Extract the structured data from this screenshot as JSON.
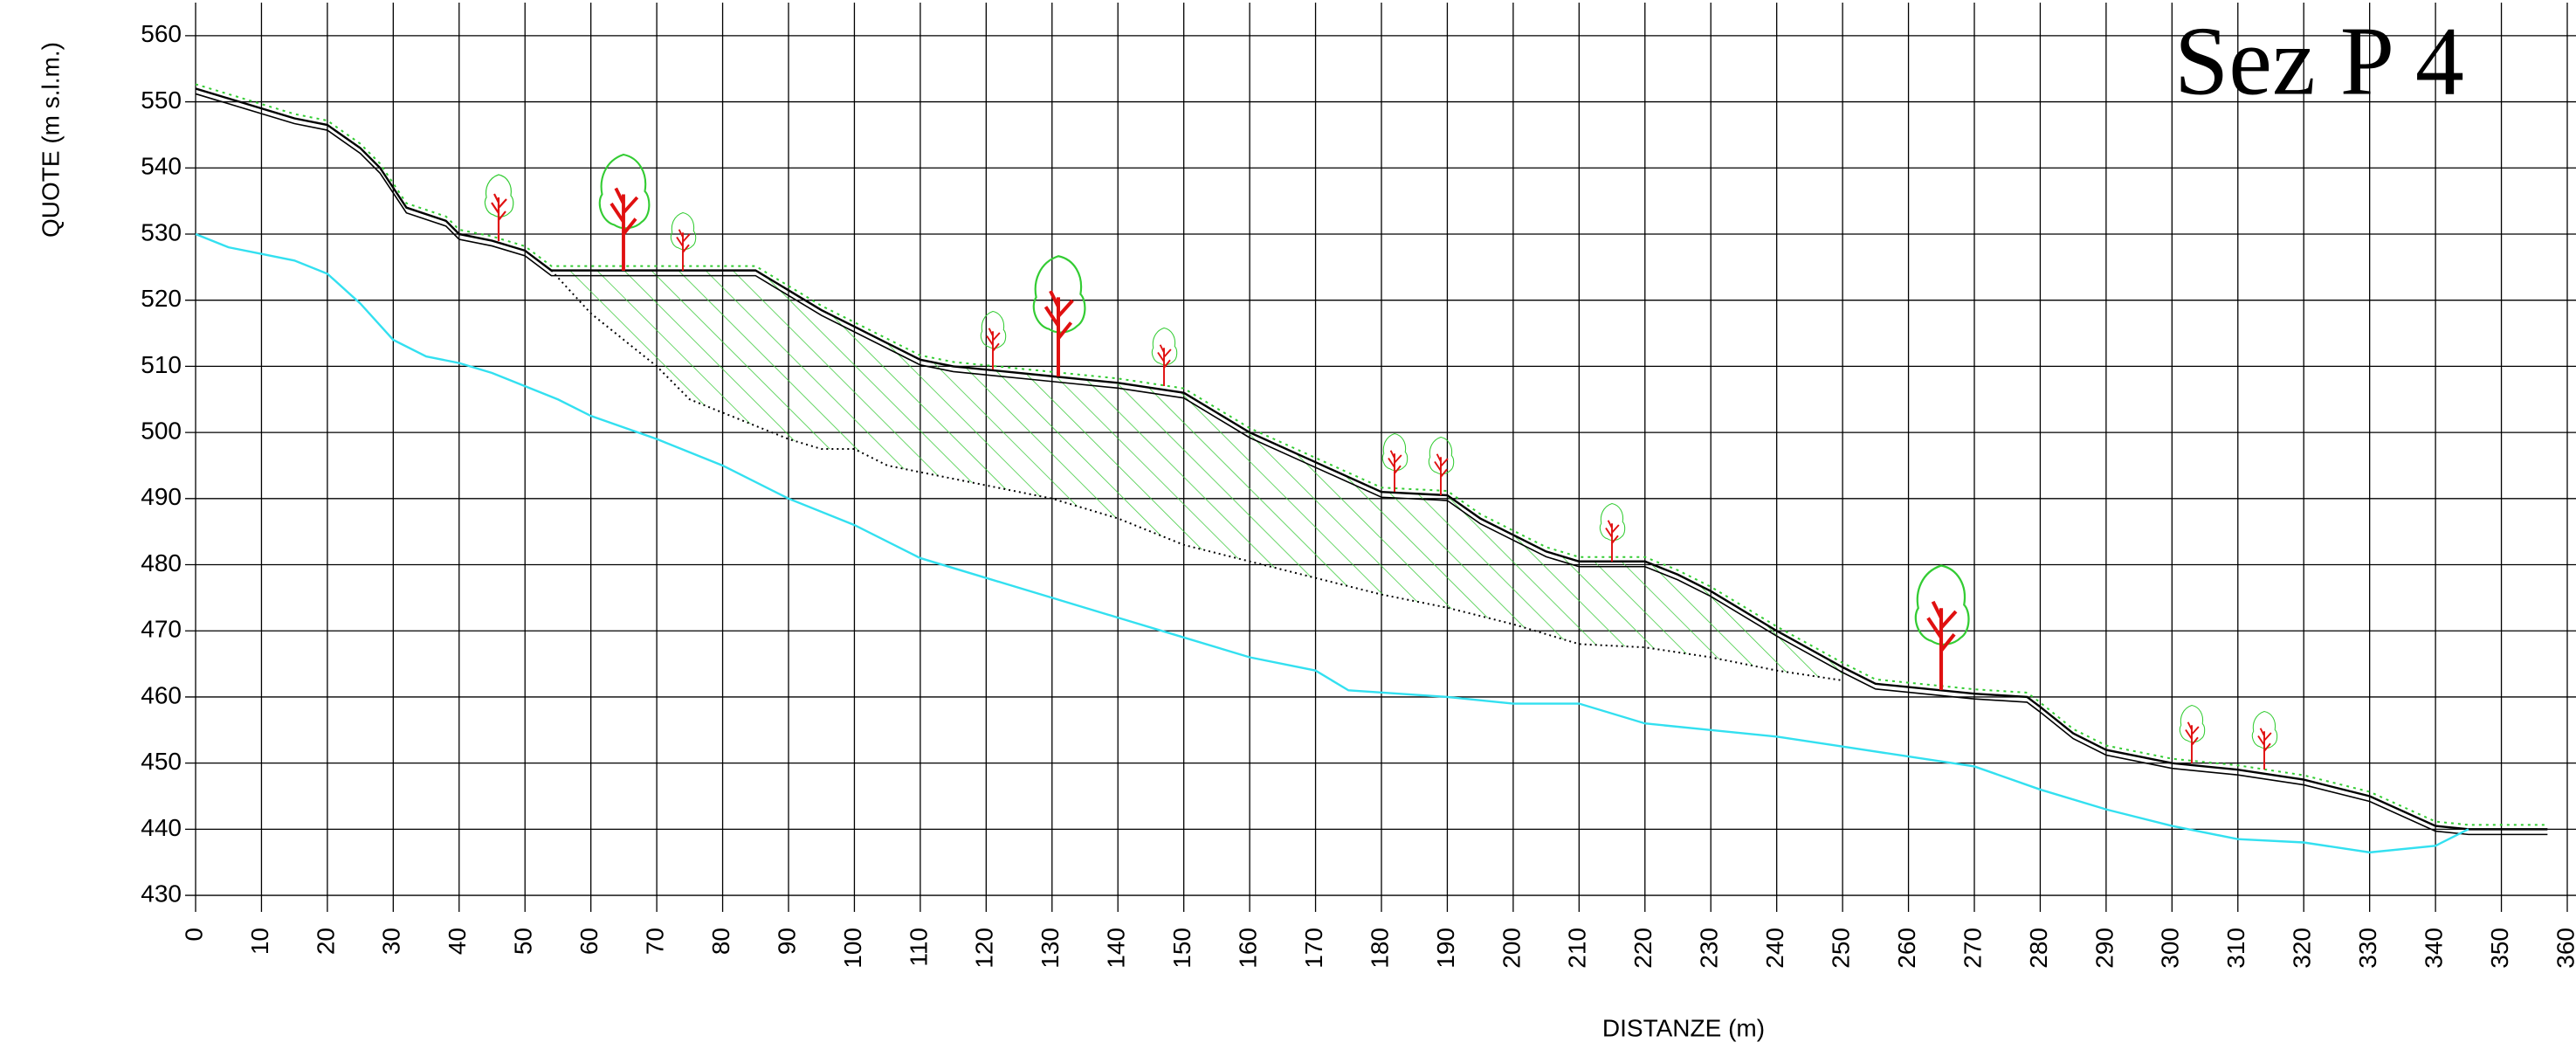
{
  "chart_data": {
    "type": "line",
    "title": "Sez P 4",
    "x_label": "DISTANZE (m)",
    "y_label": "QUOTE (m s.l.m.)",
    "xlim": [
      0,
      360
    ],
    "ylim": [
      427.5,
      565
    ],
    "xticks": [
      0,
      10,
      20,
      30,
      40,
      50,
      60,
      70,
      80,
      90,
      100,
      110,
      120,
      130,
      140,
      150,
      160,
      170,
      180,
      190,
      200,
      210,
      220,
      230,
      240,
      250,
      260,
      270,
      280,
      290,
      300,
      310,
      320,
      330,
      340,
      350,
      360
    ],
    "yticks": [
      430,
      440,
      450,
      460,
      470,
      480,
      490,
      500,
      510,
      520,
      530,
      540,
      550,
      560
    ],
    "grid": true,
    "series": [
      {
        "color": "#000000",
        "style": "solid",
        "x": [
          0,
          5,
          10,
          15,
          20,
          25,
          28,
          30,
          32,
          38,
          40,
          45,
          50,
          54,
          60,
          70,
          80,
          85,
          90,
          95,
          100,
          105,
          110,
          115,
          120,
          130,
          140,
          150,
          155,
          160,
          170,
          180,
          190,
          195,
          200,
          205,
          210,
          220,
          225,
          230,
          240,
          250,
          255,
          260,
          270,
          278,
          280,
          285,
          290,
          300,
          310,
          320,
          330,
          340,
          345,
          357
        ],
        "values": [
          552,
          550.5,
          549,
          547.5,
          546.5,
          543,
          540,
          537,
          534,
          532,
          530,
          529,
          527.5,
          524.5,
          524.5,
          524.5,
          524.5,
          524.5,
          521.5,
          518.5,
          516,
          513.5,
          511,
          510,
          509.5,
          508.5,
          507.5,
          506,
          503,
          500,
          495.5,
          491,
          490.5,
          487,
          484.5,
          482,
          480.5,
          480.5,
          478.5,
          476,
          470,
          464.5,
          462,
          461.5,
          460.5,
          460,
          458.5,
          454.5,
          452,
          450,
          449,
          447.5,
          445,
          440.5,
          440,
          440
        ]
      },
      {
        "color": "#000000",
        "style": "dotted",
        "x": [
          54,
          60,
          65,
          70,
          75,
          80,
          85,
          90,
          95,
          100,
          105,
          110,
          120,
          130,
          140,
          150,
          160,
          170,
          180,
          190,
          200,
          210,
          220,
          230,
          240,
          250
        ],
        "values": [
          524.5,
          518,
          514,
          510,
          505,
          503,
          501,
          499,
          497.5,
          497.5,
          495,
          494,
          492,
          490,
          487,
          483,
          480.5,
          478,
          475.5,
          473.5,
          471,
          468,
          467.5,
          466,
          464,
          462.5
        ]
      },
      {
        "color": "#33e0f0",
        "style": "solid",
        "x": [
          0,
          5,
          10,
          15,
          20,
          25,
          30,
          35,
          40,
          45,
          50,
          55,
          60,
          70,
          80,
          90,
          100,
          110,
          120,
          130,
          140,
          150,
          160,
          170,
          175,
          190,
          200,
          210,
          220,
          230,
          240,
          250,
          260,
          270,
          280,
          290,
          300,
          310,
          320,
          330,
          340,
          345
        ],
        "values": [
          530,
          528,
          527,
          526,
          524,
          519.5,
          514,
          511.5,
          510.5,
          509,
          507,
          505,
          502.5,
          499,
          495,
          490,
          486,
          481,
          478,
          475,
          472,
          469,
          466,
          464,
          461,
          460,
          459,
          459,
          456,
          455,
          454,
          452.5,
          451,
          449.5,
          446,
          443,
          440.5,
          438.5,
          438,
          436.5,
          437.5,
          440
        ]
      }
    ]
  }
}
